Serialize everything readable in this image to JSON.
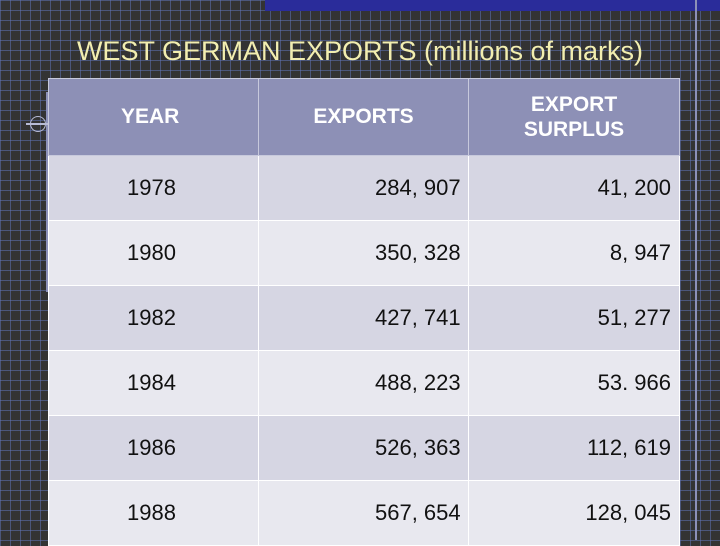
{
  "slide": {
    "title": "WEST GERMAN EXPORTS (millions of marks)"
  },
  "table": {
    "headers": {
      "year": "YEAR",
      "exports": "EXPORTS",
      "surplus_line1": "EXPORT",
      "surplus_line2": "SURPLUS"
    },
    "rows": [
      {
        "year": "1978",
        "exports": "284, 907",
        "surplus": "41, 200"
      },
      {
        "year": "1980",
        "exports": "350, 328",
        "surplus": "8, 947"
      },
      {
        "year": "1982",
        "exports": "427, 741",
        "surplus": "51, 277"
      },
      {
        "year": "1984",
        "exports": "488, 223",
        "surplus": "53. 966"
      },
      {
        "year": "1986",
        "exports": "526, 363",
        "surplus": "112, 619"
      },
      {
        "year": "1988",
        "exports": "567, 654",
        "surplus": "128, 045"
      }
    ]
  },
  "colors": {
    "title_text": "#f2eeb0",
    "header_bg": "#8d90b6",
    "row_odd_bg": "#d6d6e3",
    "row_even_bg": "#e8e8ef",
    "accent_bar": "#2a2c9a",
    "background": "#333333"
  }
}
